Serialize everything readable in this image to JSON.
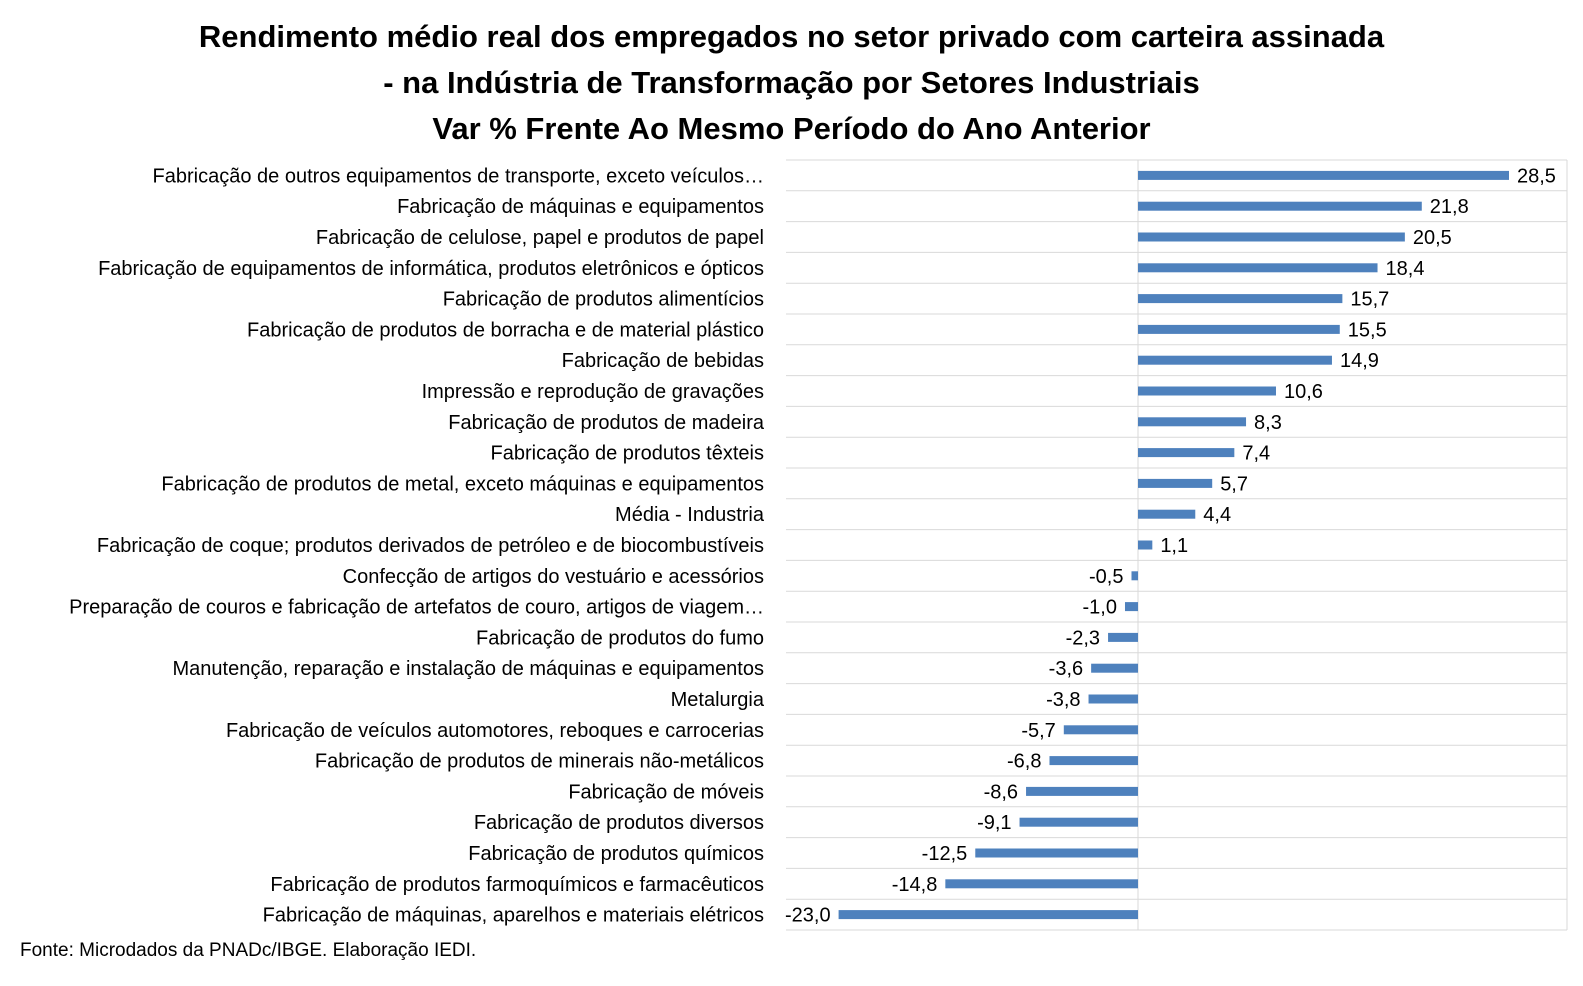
{
  "chart_data": {
    "type": "bar",
    "orientation": "horizontal",
    "title_lines": [
      "Rendimento médio real dos empregados no setor privado com carteira assinada",
      "- na Indústria de Transformação por Setores Industriais",
      "Var % Frente Ao Mesmo Período do Ano Anterior"
    ],
    "categories": [
      "Fabricação de outros equipamentos de transporte, exceto veículos…",
      "Fabricação de máquinas e equipamentos",
      "Fabricação de celulose, papel e produtos de papel",
      "Fabricação de equipamentos de informática, produtos eletrônicos e ópticos",
      "Fabricação de produtos alimentícios",
      "Fabricação de produtos de borracha e de material plástico",
      "Fabricação de bebidas",
      "Impressão e reprodução de gravações",
      "Fabricação de produtos de madeira",
      "Fabricação de produtos têxteis",
      "Fabricação de produtos de metal, exceto máquinas e equipamentos",
      "Média - Industria",
      "Fabricação de coque; produtos derivados de petróleo e de biocombustíveis",
      "Confecção de artigos do vestuário e acessórios",
      "Preparação de couros e fabricação de artefatos de couro, artigos de viagem…",
      "Fabricação de produtos do fumo",
      "Manutenção, reparação e instalação de máquinas e equipamentos",
      "Metalurgia",
      "Fabricação de veículos automotores, reboques e carrocerias",
      "Fabricação de produtos de minerais não-metálicos",
      "Fabricação de móveis",
      "Fabricação de produtos diversos",
      "Fabricação de produtos químicos",
      "Fabricação de produtos farmoquímicos e farmacêuticos",
      "Fabricação de máquinas, aparelhos e materiais elétricos"
    ],
    "values": [
      28.5,
      21.8,
      20.5,
      18.4,
      15.7,
      15.5,
      14.9,
      10.6,
      8.3,
      7.4,
      5.7,
      4.4,
      1.1,
      -0.5,
      -1.0,
      -2.3,
      -3.6,
      -3.8,
      -5.7,
      -6.8,
      -8.6,
      -9.1,
      -12.5,
      -14.8,
      -23.0
    ],
    "value_labels": [
      "28,5",
      "21,8",
      "20,5",
      "18,4",
      "15,7",
      "15,5",
      "14,9",
      "10,6",
      "8,3",
      "7,4",
      "5,7",
      "4,4",
      "1,1",
      "-0,5",
      "-1,0",
      "-2,3",
      "-3,6",
      "-3,8",
      "-5,7",
      "-6,8",
      "-8,6",
      "-9,1",
      "-12,5",
      "-14,8",
      "-23,0"
    ],
    "bar_color": "#4e81bd",
    "grid": true,
    "legend": false
  },
  "source_note": "Fonte: Microdados da PNADc/IBGE. Elaboração IEDI."
}
